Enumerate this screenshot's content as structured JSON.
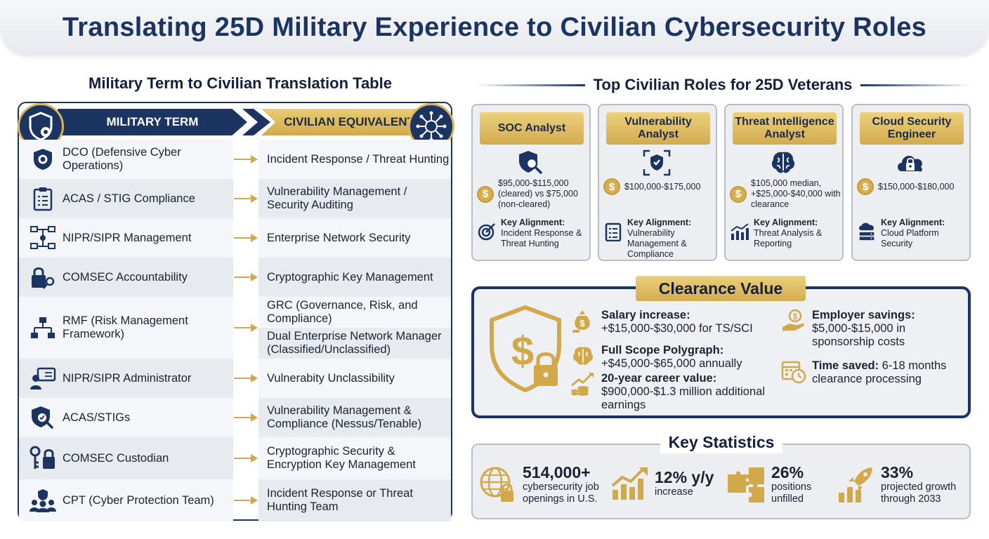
{
  "title": "Translating 25D Military Experience to Civilian Cybersecurity Roles",
  "translation_table": {
    "title": "Military Term to Civilian Translation Table",
    "header_military": "MILITARY TERM",
    "header_civilian": "CIVILIAN EQUIVALENT",
    "rows": [
      {
        "military": "DCO (Defensive Cyber Operations)",
        "civilian": "Incident Response / Threat Hunting",
        "icon": "shield-gear-icon"
      },
      {
        "military": "ACAS / STIG Compliance",
        "civilian": "Vulnerability Management / Security Auditing",
        "icon": "clipboard-checklist-icon"
      },
      {
        "military": "NIPR/SIPR Management",
        "civilian": "Enterprise Network Security",
        "icon": "network-icon"
      },
      {
        "military": "COMSEC Accountability",
        "civilian": "Cryptographic Key Management",
        "icon": "lock-key-icon"
      },
      {
        "military": "RMF (Risk Management Framework)",
        "civilian": "GRC (Governance, Risk, and Compliance)",
        "civilian_2": "Dual Enterprise Network Manager (Classified/Unclassified)",
        "icon": "hierarchy-icon"
      },
      {
        "military": "NIPR/SIPR Administrator",
        "civilian": "Vulnerabity Unclassibility",
        "icon": "admin-computer-icon"
      },
      {
        "military": "ACAS/STIGs",
        "civilian": "Vulnerability Management & Compliance (Nessus/Tenable)",
        "icon": "shield-magnifier-icon"
      },
      {
        "military": "COMSEC Custodian",
        "civilian": "Cryptographic Security & Encryption Key Management",
        "icon": "key-padlock-icon"
      },
      {
        "military": "CPT (Cyber Protection Team)",
        "civilian": "Incident Response or Threat Hunting Team",
        "icon": "team-shield-icon"
      }
    ]
  },
  "roles": {
    "title": "Top Civilian Roles for 25D Veterans",
    "cards": [
      {
        "name": "SOC Analyst",
        "salary": "$95,000-$115,000 (cleared) vs $75,000 (non-cleared)",
        "alignment_label": "Key Alignment:",
        "alignment": "Incident Response & Threat Hunting",
        "icon": "shield-search-icon",
        "align_icon": "target-icon"
      },
      {
        "name": "Vulnerability Analyst",
        "salary": "$100,000-$175,000",
        "alignment_label": "Key Alignment:",
        "alignment": "Vulnerability Management & Compliance",
        "icon": "shield-check-icon",
        "align_icon": "checklist-icon"
      },
      {
        "name": "Threat Intelligence Analyst",
        "salary": "$105,000 median, +$25,000-$40,000 with clearance",
        "alignment_label": "Key Alignment:",
        "alignment": "Threat Analysis & Reporting",
        "icon": "brain-icon",
        "align_icon": "bar-chart-icon"
      },
      {
        "name": "Cloud Security Engineer",
        "salary": "$150,000-$180,000",
        "alignment_label": "Key Alignment:",
        "alignment": "Cloud Platform Security",
        "icon": "cloud-lock-icon",
        "align_icon": "cloud-server-icon"
      }
    ]
  },
  "clearance": {
    "title": "Clearance Value",
    "items": [
      {
        "label": "Salary increase:",
        "value": "+$15,000-$30,000 for TS/SCI",
        "icon": "money-bag-icon"
      },
      {
        "label": "Full Scope Polygraph:",
        "value": "+$45,000-$65,000 annually",
        "icon": "brain-icon"
      },
      {
        "label": "20-year career value:",
        "value": "$900,000-$1.3 million additional earnings",
        "icon": "growth-coins-icon"
      },
      {
        "label": "Employer savings:",
        "value": "$5,000-$15,000 in sponsorship costs",
        "icon": "hand-coin-icon"
      },
      {
        "label": "Time saved:",
        "value": "6-18 months clearance processing",
        "icon": "calendar-clock-icon"
      }
    ]
  },
  "stats": {
    "title": "Key Statistics",
    "items": [
      {
        "value": "514,000+",
        "label": "cybersecurity job openings in U.S.",
        "icon": "globe-lock-icon"
      },
      {
        "value": "12% y/y",
        "label": "increase",
        "icon": "rising-bars-icon"
      },
      {
        "value": "26%",
        "label": "positions unfilled",
        "icon": "puzzle-icon"
      },
      {
        "value": "33%",
        "label": "projected growth through 2033",
        "icon": "rocket-chart-icon"
      }
    ]
  },
  "colors": {
    "navy": "#1b3461",
    "gold": "#d8b65c",
    "card_bg": "#eceef2"
  }
}
